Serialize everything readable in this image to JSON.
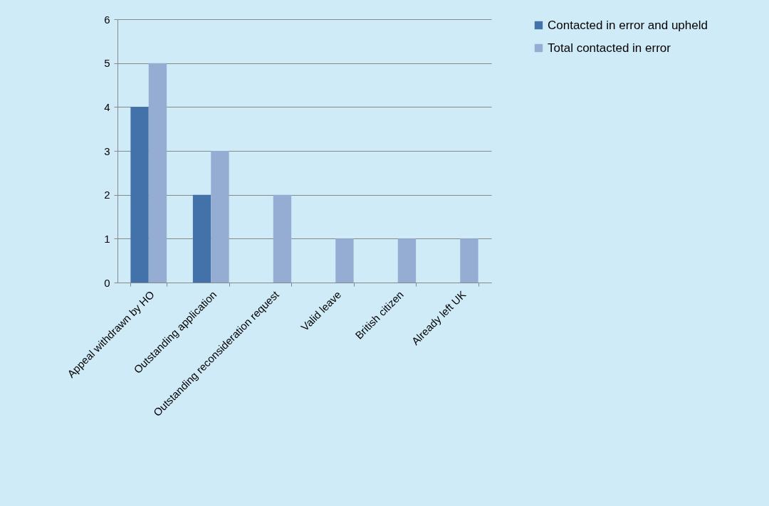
{
  "chart_data": {
    "type": "bar",
    "categories": [
      "Appeal withdrawn by HO",
      "Outstanding application",
      "Outstanding reconsideration request",
      "Valid leave",
      "British citizen",
      "Already left UK"
    ],
    "series": [
      {
        "name": "Contacted in error and upheld",
        "color": "#4272a9",
        "values": [
          4,
          2,
          null,
          null,
          null,
          null
        ]
      },
      {
        "name": "Total contacted in error",
        "color": "#95add3",
        "values": [
          5,
          3,
          2,
          1,
          1,
          1
        ]
      }
    ],
    "ylim": [
      0,
      6
    ],
    "yticks": [
      0,
      1,
      2,
      3,
      4,
      5,
      6
    ],
    "grid": "y",
    "legend": "right"
  }
}
